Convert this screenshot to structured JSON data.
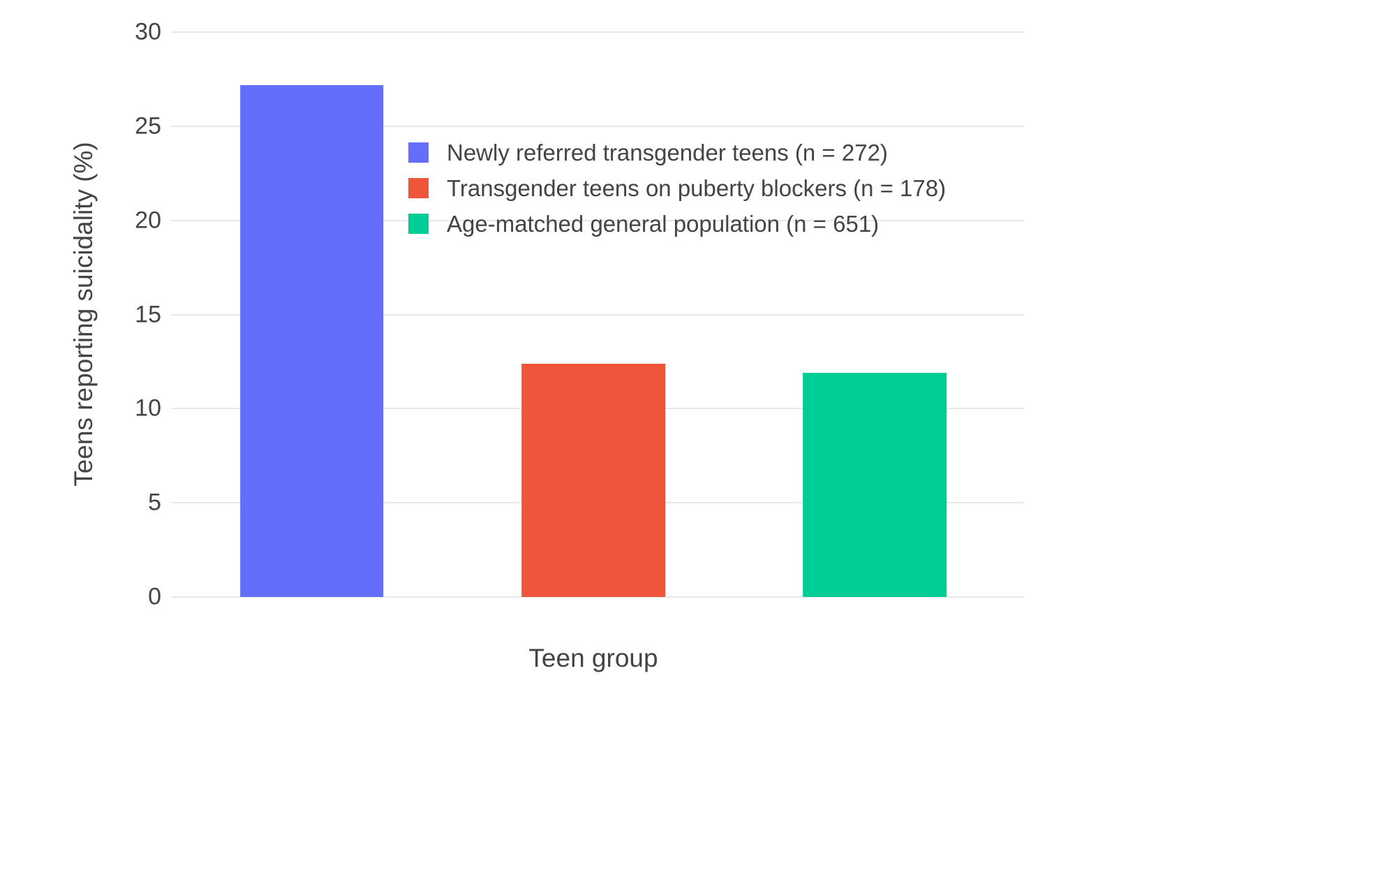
{
  "chart_data": {
    "type": "bar",
    "title": "",
    "xlabel": "Teen group",
    "ylabel": "Teens reporting suicidality (%)",
    "ylim": [
      0,
      30
    ],
    "yticks": [
      0,
      5,
      10,
      15,
      20,
      25,
      30
    ],
    "grid": true,
    "legend_position": "inside-top-center",
    "background_color": "#ffffff",
    "grid_color": "#e8e8e8",
    "text_color": "#444444",
    "categories": [
      "Newly referred transgender teens",
      "Transgender teens on puberty blockers",
      "Age-matched general population"
    ],
    "series": [
      {
        "name": "Newly referred transgender teens (n = 272)",
        "value": 27.2,
        "color": "#636EFA"
      },
      {
        "name": "Transgender teens on puberty blockers (n = 178)",
        "value": 12.4,
        "color": "#EF553B"
      },
      {
        "name": "Age-matched general population (n = 651)",
        "value": 11.9,
        "color": "#00CC96"
      }
    ]
  }
}
